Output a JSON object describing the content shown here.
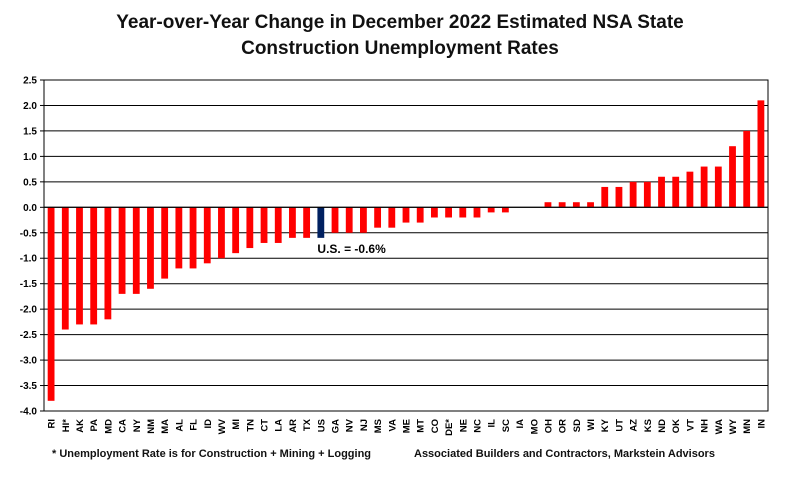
{
  "title_lines": [
    "Year-over-Year Change in December 2022 Estimated NSA State",
    "Construction Unemployment Rates"
  ],
  "footnotes": {
    "left": "* Unemployment Rate is for Construction + Mining + Logging",
    "right": "Associated Builders and Contractors, Markstein Advisors"
  },
  "colors": {
    "state_bar": "#ff0000",
    "us_bar": "#002060",
    "grid": "#000000",
    "axis": "#000000"
  },
  "chart_data": {
    "type": "bar",
    "title": "Year-over-Year Change in December 2022 Estimated NSA State Construction Unemployment Rates",
    "xlabel": "",
    "ylabel": "",
    "ylim": [
      -4.0,
      2.5
    ],
    "yticks": [
      "2.5",
      "2.0",
      "1.5",
      "1.0",
      "0.5",
      "0.0",
      "-0.5",
      "-1.0",
      "-1.5",
      "-2.0",
      "-2.5",
      "-3.0",
      "-3.5",
      "-4.0"
    ],
    "grid": true,
    "highlight_category": "US",
    "annotation": "U.S. = -0.6%",
    "categories": [
      "RI",
      "HI*",
      "AK",
      "PA",
      "MD",
      "CA",
      "NY",
      "NM",
      "MA",
      "AL",
      "FL",
      "ID",
      "WV",
      "MI",
      "TN",
      "CT",
      "LA",
      "AR",
      "TX",
      "US",
      "GA",
      "NV",
      "NJ",
      "MS",
      "VA",
      "ME",
      "MT",
      "CO",
      "DE*",
      "NE",
      "NC",
      "IL",
      "SC",
      "IA",
      "MO",
      "OH",
      "OR",
      "SD",
      "WI",
      "KY",
      "UT",
      "AZ",
      "KS",
      "ND",
      "OK",
      "VT",
      "NH",
      "WA",
      "WY",
      "MN",
      "IN"
    ],
    "values": [
      -3.8,
      -2.4,
      -2.3,
      -2.3,
      -2.2,
      -1.7,
      -1.7,
      -1.6,
      -1.4,
      -1.2,
      -1.2,
      -1.1,
      -1.0,
      -0.9,
      -0.8,
      -0.7,
      -0.7,
      -0.6,
      -0.6,
      -0.6,
      -0.5,
      -0.5,
      -0.5,
      -0.4,
      -0.4,
      -0.3,
      -0.3,
      -0.2,
      -0.2,
      -0.2,
      -0.2,
      -0.1,
      -0.1,
      0.0,
      0.0,
      0.1,
      0.1,
      0.1,
      0.1,
      0.4,
      0.4,
      0.5,
      0.5,
      0.6,
      0.6,
      0.7,
      0.8,
      0.8,
      1.2,
      1.5,
      2.1
    ]
  }
}
